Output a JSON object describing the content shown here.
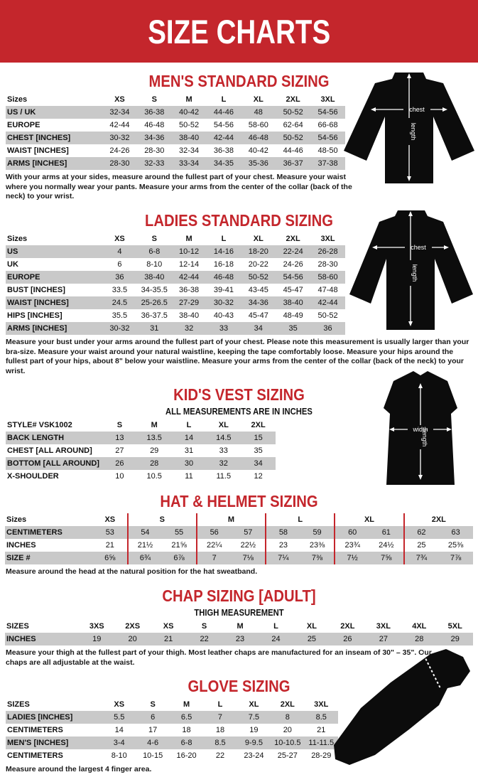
{
  "colors": {
    "accent_red": "#c4262c",
    "row_gray": "#c9c9c9"
  },
  "banner": {
    "title": "SIZE CHARTS"
  },
  "sections": {
    "mens": {
      "title": "MEN'S STANDARD SIZING",
      "table": {
        "label_header": "Sizes",
        "columns": [
          "XS",
          "S",
          "M",
          "L",
          "XL",
          "2XL",
          "3XL"
        ],
        "rows": [
          {
            "label": "US / UK",
            "values": [
              "32-34",
              "36-38",
              "40-42",
              "44-46",
              "48",
              "50-52",
              "54-56"
            ]
          },
          {
            "label": "EUROPE",
            "values": [
              "42-44",
              "46-48",
              "50-52",
              "54-56",
              "58-60",
              "62-64",
              "66-68"
            ]
          },
          {
            "label": "CHEST [INCHES]",
            "values": [
              "30-32",
              "34-36",
              "38-40",
              "42-44",
              "46-48",
              "50-52",
              "54-56"
            ]
          },
          {
            "label": "WAIST [INCHES]",
            "values": [
              "24-26",
              "28-30",
              "32-34",
              "36-38",
              "40-42",
              "44-46",
              "48-50"
            ]
          },
          {
            "label": "ARMS [INCHES]",
            "values": [
              "28-30",
              "32-33",
              "33-34",
              "34-35",
              "35-36",
              "36-37",
              "37-38"
            ]
          }
        ]
      },
      "note": "With your arms at your sides, measure around the fullest part of your chest. Measure your waist where you normally wear your pants. Measure your arms from the center of the collar (back of the neck) to your wrist."
    },
    "ladies": {
      "title": "LADIES STANDARD SIZING",
      "table": {
        "label_header": "Sizes",
        "columns": [
          "XS",
          "S",
          "M",
          "L",
          "XL",
          "2XL",
          "3XL"
        ],
        "rows": [
          {
            "label": "US",
            "values": [
              "4",
              "6-8",
              "10-12",
              "14-16",
              "18-20",
              "22-24",
              "26-28"
            ]
          },
          {
            "label": "UK",
            "values": [
              "6",
              "8-10",
              "12-14",
              "16-18",
              "20-22",
              "24-26",
              "28-30"
            ]
          },
          {
            "label": "EUROPE",
            "values": [
              "36",
              "38-40",
              "42-44",
              "46-48",
              "50-52",
              "54-56",
              "58-60"
            ]
          },
          {
            "label": "BUST [INCHES]",
            "values": [
              "33.5",
              "34-35.5",
              "36-38",
              "39-41",
              "43-45",
              "45-47",
              "47-48"
            ]
          },
          {
            "label": "WAIST [INCHES]",
            "values": [
              "24.5",
              "25-26.5",
              "27-29",
              "30-32",
              "34-36",
              "38-40",
              "42-44"
            ]
          },
          {
            "label": "HIPS [INCHES]",
            "values": [
              "35.5",
              "36-37.5",
              "38-40",
              "40-43",
              "45-47",
              "48-49",
              "50-52"
            ]
          },
          {
            "label": "ARMS [INCHES]",
            "values": [
              "30-32",
              "31",
              "32",
              "33",
              "34",
              "35",
              "36"
            ]
          }
        ]
      },
      "note": "Measure your bust under your arms around the fullest part of your chest. Please note this measurement is usually larger than your bra-size. Measure your waist around your natural waistline, keeping the tape comfortably loose. Measure your hips around the fullest part of your hips, about 8\" below your waistline. Measure your arms from the center of the collar (back of the neck) to your wrist."
    },
    "kids": {
      "title": "KID'S VEST SIZING",
      "subtitle": "ALL MEASUREMENTS ARE IN INCHES",
      "table": {
        "label_header": "STYLE# VSK1002",
        "columns": [
          "S",
          "M",
          "L",
          "XL",
          "2XL"
        ],
        "rows": [
          {
            "label": "BACK LENGTH",
            "values": [
              "13",
              "13.5",
              "14",
              "14.5",
              "15"
            ]
          },
          {
            "label": "CHEST [ALL AROUND]",
            "values": [
              "27",
              "29",
              "31",
              "33",
              "35"
            ]
          },
          {
            "label": "BOTTOM [ALL AROUND]",
            "values": [
              "26",
              "28",
              "30",
              "32",
              "34"
            ]
          },
          {
            "label": "X-SHOULDER",
            "values": [
              "10",
              "10.5",
              "11",
              "11.5",
              "12"
            ]
          }
        ]
      }
    },
    "hat": {
      "title": "HAT & HELMET SIZING",
      "table": {
        "label_header": "Sizes",
        "groups": [
          {
            "label": "XS",
            "span": 1
          },
          {
            "label": "S",
            "span": 2
          },
          {
            "label": "M",
            "span": 2
          },
          {
            "label": "L",
            "span": 2
          },
          {
            "label": "XL",
            "span": 2
          },
          {
            "label": "2XL",
            "span": 2
          }
        ],
        "rows": [
          {
            "label": "CENTIMETERS",
            "values": [
              "53",
              "54",
              "55",
              "56",
              "57",
              "58",
              "59",
              "60",
              "61",
              "62",
              "63"
            ]
          },
          {
            "label": "INCHES",
            "values": [
              "21",
              "21½",
              "21⅝",
              "22¼",
              "22½",
              "23",
              "23⅜",
              "23¾",
              "24½",
              "25",
              "25⅜"
            ]
          },
          {
            "label": "SIZE #",
            "values": [
              "6⅝",
              "6¾",
              "6⅞",
              "7",
              "7⅛",
              "7¼",
              "7⅜",
              "7½",
              "7⅝",
              "7¾",
              "7⅞"
            ]
          }
        ]
      },
      "note": "Measure around the head at the natural position for the hat sweatband."
    },
    "chap": {
      "title": "CHAP SIZING [ADULT]",
      "subtitle": "THIGH MEASUREMENT",
      "table": {
        "label_header": "SIZES",
        "columns": [
          "3XS",
          "2XS",
          "XS",
          "S",
          "M",
          "L",
          "XL",
          "2XL",
          "3XL",
          "4XL",
          "5XL"
        ],
        "rows": [
          {
            "label": "INCHES",
            "values": [
              "19",
              "20",
              "21",
              "22",
              "23",
              "24",
              "25",
              "26",
              "27",
              "28",
              "29"
            ]
          }
        ]
      },
      "note": "Measure your thigh at the fullest part of your thigh. Most leather chaps are manufactured for an inseam of 30\" – 35\". Our chaps are all adjustable at the waist."
    },
    "glove": {
      "title": "GLOVE SIZING",
      "table": {
        "label_header": "SIZES",
        "columns": [
          "XS",
          "S",
          "M",
          "L",
          "XL",
          "2XL",
          "3XL"
        ],
        "rows": [
          {
            "label": "LADIES [INCHES]",
            "values": [
              "5.5",
              "6",
              "6.5",
              "7",
              "7.5",
              "8",
              "8.5"
            ]
          },
          {
            "label": "CENTIMETERS",
            "values": [
              "14",
              "17",
              "18",
              "18",
              "19",
              "20",
              "21"
            ]
          },
          {
            "label": "MEN'S [INCHES]",
            "values": [
              "3-4",
              "4-6",
              "6-8",
              "8.5",
              "9-9.5",
              "10-10.5",
              "11-11.5"
            ]
          },
          {
            "label": "CENTIMETERS",
            "values": [
              "8-10",
              "10-15",
              "16-20",
              "22",
              "23-24",
              "25-27",
              "28-29"
            ]
          }
        ]
      },
      "note": "Measure around the largest 4 finger area."
    }
  },
  "illustrations": {
    "chest_label": "chest",
    "length_label": "length",
    "width_label": "width"
  }
}
